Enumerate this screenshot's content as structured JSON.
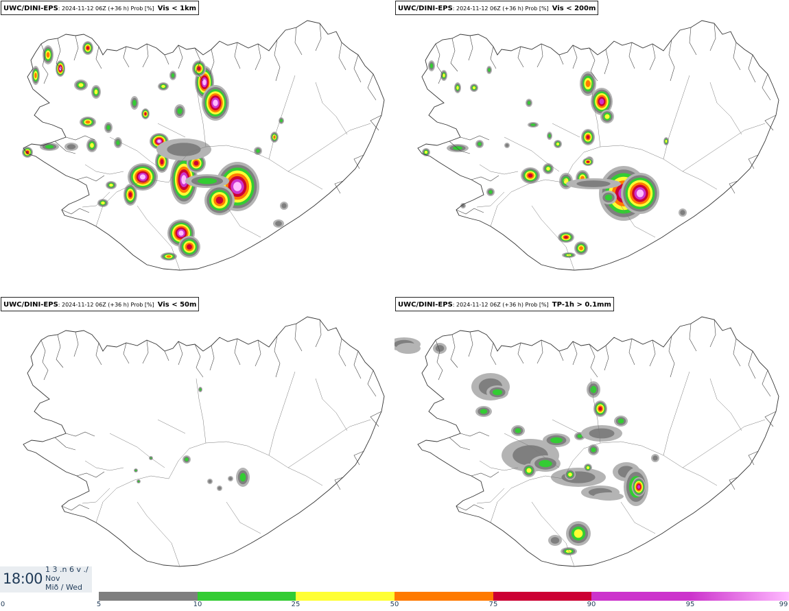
{
  "panels": [
    {
      "model": "UWC/DINI-EPS",
      "run": ": 2024-11-12 06Z (+36 h) Prob [%]",
      "variable": "Vis < 1km"
    },
    {
      "model": "UWC/DINI-EPS",
      "run": ": 2024-11-12 06Z (+36 h) Prob [%]",
      "variable": "Vis < 200m"
    },
    {
      "model": "UWC/DINI-EPS",
      "run": ": 2024-11-12 06Z (+36 h) Prob [%]",
      "variable": "Vis < 50m"
    },
    {
      "model": "UWC/DINI-EPS",
      "run": ": 2024-11-12 06Z (+36 h) Prob [%]",
      "variable": "TP-1h > 0.1mm"
    }
  ],
  "time": {
    "value": "18:00",
    "line1": "1 3 .n 6 v ./",
    "line2": "Nov",
    "line3": "Mið / Wed"
  },
  "legend": {
    "ticks": [
      "0",
      "5",
      "10",
      "25",
      "50",
      "75",
      "90",
      "95",
      "99"
    ],
    "colors": [
      "#ffffff",
      "#b4b4b4",
      "#7f7f7f",
      "#33cc33",
      "#ffff33",
      "#ff7a00",
      "#cc0033",
      "#cc33cc",
      "#ffbbff"
    ]
  }
}
